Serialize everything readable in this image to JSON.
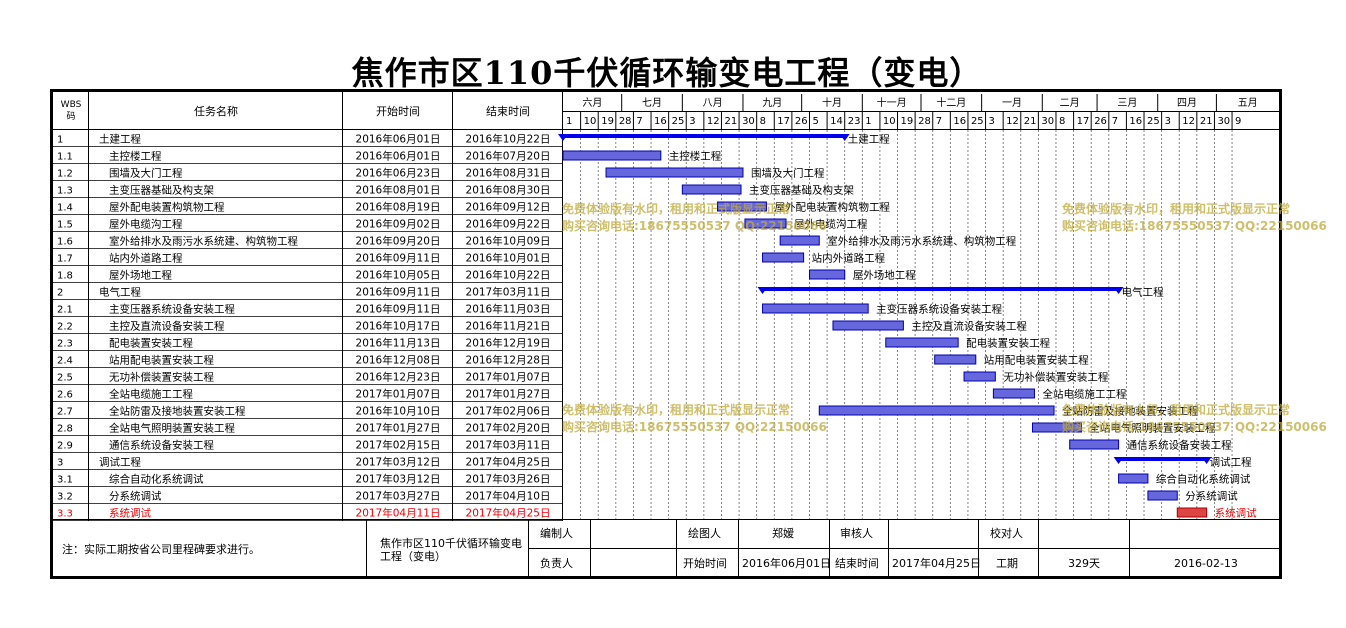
{
  "title": "焦作市区110千伏循环输变电工程（变电）",
  "header": {
    "wbs": "WBS码",
    "name": "任务名称",
    "start": "开始时间",
    "end": "结束时间"
  },
  "months": [
    "六月",
    "七月",
    "八月",
    "九月",
    "十月",
    "十一月",
    "十二月",
    "一月",
    "二月",
    "三月",
    "四月",
    "五月"
  ],
  "week_ticks": [
    "1",
    "10",
    "19",
    "28",
    "7",
    "16",
    "25",
    "3",
    "12",
    "21",
    "30",
    "8",
    "17",
    "26",
    "5",
    "14",
    "23",
    "1",
    "10",
    "19",
    "28",
    "7",
    "16",
    "25",
    "3",
    "12",
    "21",
    "30",
    "8",
    "17",
    "26",
    "7",
    "16",
    "25",
    "3",
    "12",
    "21",
    "30",
    "9"
  ],
  "chart_data": {
    "type": "gantt",
    "timeline_start": "2016-06-01",
    "timeline_end": "2017-05-31",
    "tasks": [
      {
        "wbs": "1",
        "name": "土建工程",
        "start": "2016年06月01日",
        "end": "2016年10月22日",
        "s": "2016-06-01",
        "e": "2016-10-22",
        "kind": "summary",
        "level": 1,
        "label": "土建工程"
      },
      {
        "wbs": "1.1",
        "name": "主控楼工程",
        "start": "2016年06月01日",
        "end": "2016年07月20日",
        "s": "2016-06-01",
        "e": "2016-07-20",
        "kind": "task",
        "level": 2,
        "label": "主控楼工程"
      },
      {
        "wbs": "1.2",
        "name": "围墙及大门工程",
        "start": "2016年06月23日",
        "end": "2016年08月31日",
        "s": "2016-06-23",
        "e": "2016-08-31",
        "kind": "task",
        "level": 2,
        "label": "围墙及大门工程"
      },
      {
        "wbs": "1.3",
        "name": "主变压器基础及构支架",
        "start": "2016年08月01日",
        "end": "2016年08月30日",
        "s": "2016-08-01",
        "e": "2016-08-30",
        "kind": "task",
        "level": 2,
        "label": "主变压器基础及构支架"
      },
      {
        "wbs": "1.4",
        "name": "屋外配电装置构筑物工程",
        "start": "2016年08月19日",
        "end": "2016年09月12日",
        "s": "2016-08-19",
        "e": "2016-09-12",
        "kind": "task",
        "level": 2,
        "label": "屋外配电装置构筑物工程"
      },
      {
        "wbs": "1.5",
        "name": "屋外电缆沟工程",
        "start": "2016年09月02日",
        "end": "2016年09月22日",
        "s": "2016-09-02",
        "e": "2016-09-22",
        "kind": "task",
        "level": 2,
        "label": "屋外电缆沟工程"
      },
      {
        "wbs": "1.6",
        "name": "室外给排水及雨污水系统建、构筑物工程",
        "start": "2016年09月20日",
        "end": "2016年10月09日",
        "s": "2016-09-20",
        "e": "2016-10-09",
        "kind": "task",
        "level": 2,
        "label": "室外给排水及雨污水系统建、构筑物工程"
      },
      {
        "wbs": "1.7",
        "name": "站内外道路工程",
        "start": "2016年09月11日",
        "end": "2016年10月01日",
        "s": "2016-09-11",
        "e": "2016-10-01",
        "kind": "task",
        "level": 2,
        "label": "站内外道路工程"
      },
      {
        "wbs": "1.8",
        "name": "屋外场地工程",
        "start": "2016年10月05日",
        "end": "2016年10月22日",
        "s": "2016-10-05",
        "e": "2016-10-22",
        "kind": "task",
        "level": 2,
        "label": "屋外场地工程"
      },
      {
        "wbs": "2",
        "name": "电气工程",
        "start": "2016年09月11日",
        "end": "2017年03月11日",
        "s": "2016-09-11",
        "e": "2017-03-11",
        "kind": "summary",
        "level": 1,
        "label": "电气工程"
      },
      {
        "wbs": "2.1",
        "name": "主变压器系统设备安装工程",
        "start": "2016年09月11日",
        "end": "2016年11月03日",
        "s": "2016-09-11",
        "e": "2016-11-03",
        "kind": "task",
        "level": 2,
        "label": "主变压器系统设备安装工程"
      },
      {
        "wbs": "2.2",
        "name": "主控及直流设备安装工程",
        "start": "2016年10月17日",
        "end": "2016年11月21日",
        "s": "2016-10-17",
        "e": "2016-11-21",
        "kind": "task",
        "level": 2,
        "label": "主控及直流设备安装工程"
      },
      {
        "wbs": "2.3",
        "name": "配电装置安装工程",
        "start": "2016年11月13日",
        "end": "2016年12月19日",
        "s": "2016-11-13",
        "e": "2016-12-19",
        "kind": "task",
        "level": 2,
        "label": "配电装置安装工程"
      },
      {
        "wbs": "2.4",
        "name": "站用配电装置安装工程",
        "start": "2016年12月08日",
        "end": "2016年12月28日",
        "s": "2016-12-08",
        "e": "2016-12-28",
        "kind": "task",
        "level": 2,
        "label": "站用配电装置安装工程"
      },
      {
        "wbs": "2.5",
        "name": "无功补偿装置安装工程",
        "start": "2016年12月23日",
        "end": "2017年01月07日",
        "s": "2016-12-23",
        "e": "2017-01-07",
        "kind": "task",
        "level": 2,
        "label": "无功补偿装置安装工程"
      },
      {
        "wbs": "2.6",
        "name": "全站电缆施工工程",
        "start": "2017年01月07日",
        "end": "2017年01月27日",
        "s": "2017-01-07",
        "e": "2017-01-27",
        "kind": "task",
        "level": 2,
        "label": "全站电缆施工工程"
      },
      {
        "wbs": "2.7",
        "name": "全站防雷及接地装置安装工程",
        "start": "2016年10月10日",
        "end": "2017年02月06日",
        "s": "2016-10-10",
        "e": "2017-02-06",
        "kind": "task",
        "level": 2,
        "label": "全站防雷及接地装置安装工程"
      },
      {
        "wbs": "2.8",
        "name": "全站电气照明装置安装工程",
        "start": "2017年01月27日",
        "end": "2017年02月20日",
        "s": "2017-01-27",
        "e": "2017-02-20",
        "kind": "task",
        "level": 2,
        "label": "全站电气照明装置安装工程"
      },
      {
        "wbs": "2.9",
        "name": "通信系统设备安装工程",
        "start": "2017年02月15日",
        "end": "2017年03月11日",
        "s": "2017-02-15",
        "e": "2017-03-11",
        "kind": "task",
        "level": 2,
        "label": "通信系统设备安装工程"
      },
      {
        "wbs": "3",
        "name": "调试工程",
        "start": "2017年03月12日",
        "end": "2017年04月25日",
        "s": "2017-03-12",
        "e": "2017-04-25",
        "kind": "summary",
        "level": 1,
        "label": "调试工程"
      },
      {
        "wbs": "3.1",
        "name": "综合自动化系统调试",
        "start": "2017年03月12日",
        "end": "2017年03月26日",
        "s": "2017-03-12",
        "e": "2017-03-26",
        "kind": "task",
        "level": 2,
        "label": "综合自动化系统调试"
      },
      {
        "wbs": "3.2",
        "name": "分系统调试",
        "start": "2017年03月27日",
        "end": "2017年04月10日",
        "s": "2017-03-27",
        "e": "2017-04-10",
        "kind": "task",
        "level": 2,
        "label": "分系统调试"
      },
      {
        "wbs": "3.3",
        "name": "系统调试",
        "start": "2017年04月11日",
        "end": "2017年04月25日",
        "s": "2017-04-11",
        "e": "2017-04-25",
        "kind": "critical",
        "level": 2,
        "label": "系统调试"
      }
    ]
  },
  "colors": {
    "task_fill": "#6666dd",
    "task_border": "#0000aa",
    "summary": "#0000ee",
    "critical_fill": "#dd4444",
    "critical_text": "#ee0000",
    "watermark": "#c8b24a"
  },
  "footer": {
    "note": "注：实际工期按省公司里程碑要求进行。",
    "project": "焦作市区110千伏循环输变电工程（变电）",
    "compiler_label": "编制人",
    "compiler_value": "",
    "drawer_label": "绘图人",
    "drawer_value": "郑嫒",
    "reviewer_label": "审核人",
    "reviewer_value": "",
    "checker_label": "校对人",
    "checker_value": "",
    "owner_label": "负责人",
    "owner_value": "",
    "start_label": "开始时间",
    "start_value": "2016年06月01日",
    "end_label": "结束时间",
    "end_value": "2017年04月25日",
    "duration_label": "工期",
    "duration_value": "329天",
    "date_value": "2016-02-13"
  },
  "watermark": {
    "line1": "免费体验版有水印，租用和正式版显示正常",
    "line2": "购买咨询电话:18675550537 QQ:22150066"
  }
}
